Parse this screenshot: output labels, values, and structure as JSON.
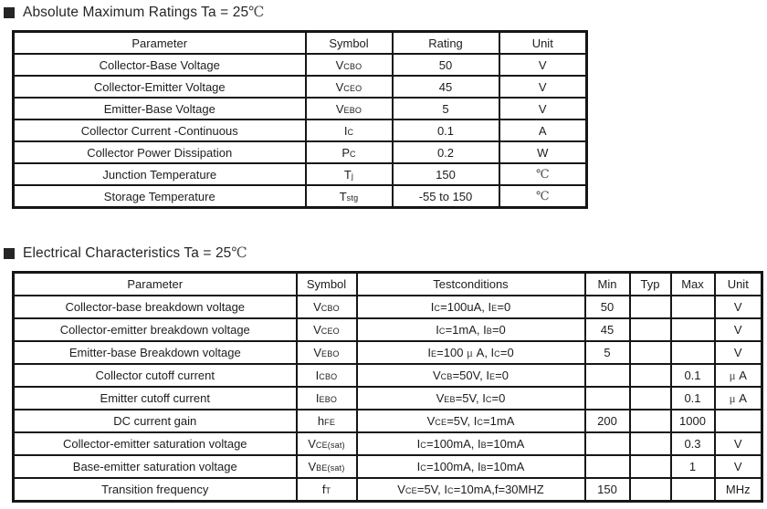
{
  "section1": {
    "title": "Absolute Maximum Ratings Ta = 25{℃}",
    "table": {
      "headers": {
        "parameter": "Parameter",
        "symbol": "Symbol",
        "rating": "Rating",
        "unit": "Unit"
      },
      "rows": [
        {
          "parameter": "Collector-Base Voltage",
          "symbol": "V[CBO]",
          "rating": "50",
          "unit": "V"
        },
        {
          "parameter": "Collector-Emitter Voltage",
          "symbol": "V[CEO]",
          "rating": "45",
          "unit": "V"
        },
        {
          "parameter": "Emitter-Base Voltage",
          "symbol": "V[EBO]",
          "rating": "5",
          "unit": "V"
        },
        {
          "parameter": "Collector Current -Continuous",
          "symbol": "I[C]",
          "rating": "0.1",
          "unit": "A"
        },
        {
          "parameter": "Collector Power Dissipation",
          "symbol": "P[C]",
          "rating": "0.2",
          "unit": "W"
        },
        {
          "parameter": "Junction Temperature",
          "symbol": "T[j]",
          "rating": "150",
          "unit": "{℃}"
        },
        {
          "parameter": "Storage Temperature",
          "symbol": "T[stg]",
          "rating": "-55 to 150",
          "unit": "{℃}"
        }
      ]
    }
  },
  "section2": {
    "title": "Electrical Characteristics Ta = 25{℃}",
    "table": {
      "headers": {
        "parameter": "Parameter",
        "symbol": "Symbol",
        "testconditions": "Testconditions",
        "min": "Min",
        "typ": "Typ",
        "max": "Max",
        "unit": "Unit"
      },
      "rows": [
        {
          "parameter": "Collector-base breakdown voltage",
          "symbol": "V[CBO]",
          "testconditions": "I[C]=100uA, I[E]=0",
          "min": "50",
          "typ": "",
          "max": "",
          "unit": "V"
        },
        {
          "parameter": "Collector-emitter breakdown voltage",
          "symbol": "V[CEO]",
          "testconditions": "I[C]=1mA, I[B]=0",
          "min": "45",
          "typ": "",
          "max": "",
          "unit": "V"
        },
        {
          "parameter": "Emitter-base Breakdown voltage",
          "symbol": "V[EBO]",
          "testconditions": "I[E]=100 {μ} A, I[C]=0",
          "min": "5",
          "typ": "",
          "max": "",
          "unit": "V"
        },
        {
          "parameter": "Collector cutoff current",
          "symbol": "I[CBO]",
          "testconditions": "V[CB]=50V, I[E]=0",
          "min": "",
          "typ": "",
          "max": "0.1",
          "unit": "{μ} A"
        },
        {
          "parameter": "Emitter cutoff current",
          "symbol": "I[EBO]",
          "testconditions": "V[EB]=5V, I[C]=0",
          "min": "",
          "typ": "",
          "max": "0.1",
          "unit": "{μ} A"
        },
        {
          "parameter": "DC current gain",
          "symbol": "h[FE]",
          "testconditions": "V[CE]=5V, I[C]=1mA",
          "min": "200",
          "typ": "",
          "max": "1000",
          "unit": ""
        },
        {
          "parameter": "Collector-emitter saturation voltage",
          "symbol": "V[CE(sat)]",
          "testconditions": "I[C]=100mA, I[B]=10mA",
          "min": "",
          "typ": "",
          "max": "0.3",
          "unit": "V"
        },
        {
          "parameter": "Base-emitter saturation voltage",
          "symbol": "V[BE(sat)]",
          "testconditions": "I[C]=100mA, I[B]=10mA",
          "min": "",
          "typ": "",
          "max": "1",
          "unit": "V"
        },
        {
          "parameter": "Transition frequency",
          "symbol": "f[T]",
          "testconditions": "V[CE]=5V, I[C]=10mA,f=30MHZ",
          "min": "150",
          "typ": "",
          "max": "",
          "unit": "MHz"
        }
      ]
    }
  },
  "colors": {
    "text": "#1d1d1d",
    "border": "#161616",
    "alt_glyph": "#4a4a4a"
  }
}
